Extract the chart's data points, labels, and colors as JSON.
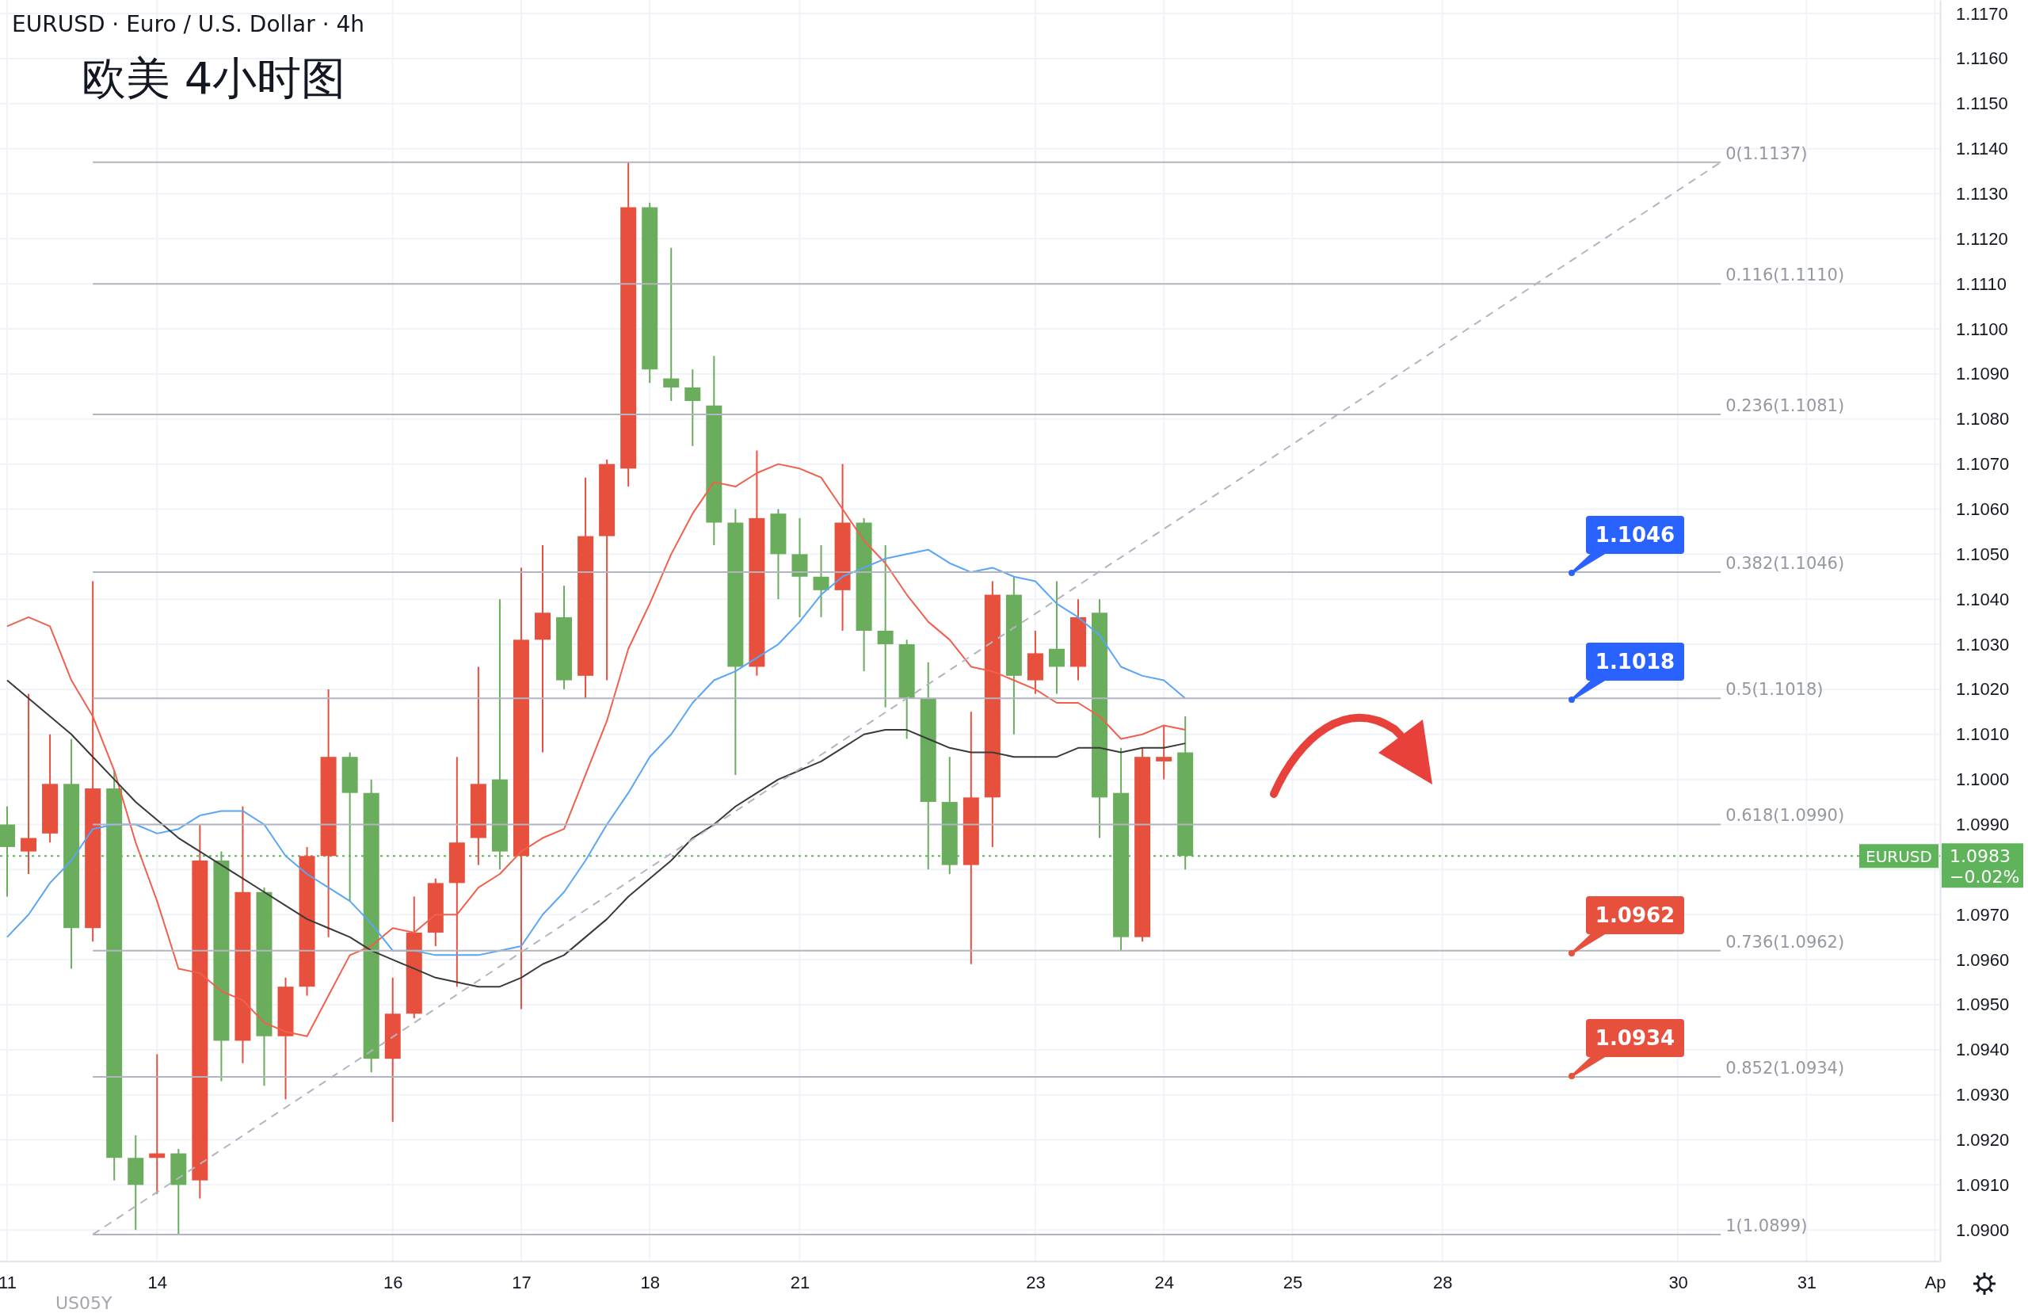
{
  "chart_data": {
    "type": "candlestick",
    "title": "欧美 4小时图",
    "subtitle": "EURUSD · Euro / U.S. Dollar · 4h",
    "categories": [
      "11",
      null,
      null,
      null,
      null,
      null,
      null,
      "14",
      null,
      null,
      null,
      null,
      null,
      null,
      null,
      null,
      null,
      null,
      "16",
      null,
      null,
      null,
      null,
      null,
      "17",
      null,
      null,
      null,
      null,
      null,
      "18",
      null,
      null,
      null,
      null,
      null,
      null,
      "21",
      null,
      null,
      null,
      null,
      null,
      null,
      null,
      null,
      null,
      null,
      "23",
      null,
      null,
      null,
      null,
      null,
      "24",
      null,
      null,
      null,
      null,
      null,
      "25",
      null,
      null,
      null,
      null,
      null,
      null,
      "28",
      null,
      null,
      null,
      null,
      null,
      null,
      null,
      null,
      null,
      null,
      "30",
      null,
      null,
      null,
      null,
      null,
      "31",
      null,
      null,
      null,
      null,
      null,
      "Ap"
    ],
    "ohlc": [
      [
        1.099,
        1.0994,
        1.0974,
        1.0985
      ],
      [
        1.0984,
        1.1019,
        1.0979,
        1.0987
      ],
      [
        1.0988,
        1.101,
        1.0986,
        1.0999
      ],
      [
        1.0999,
        1.1009,
        1.0958,
        1.0967
      ],
      [
        1.0967,
        1.1044,
        1.0964,
        1.0998
      ],
      [
        1.0998,
        1.1002,
        1.0911,
        1.0916
      ],
      [
        1.0916,
        1.0921,
        1.09,
        1.091
      ],
      [
        1.0916,
        1.0939,
        1.0908,
        1.0917
      ],
      [
        1.0917,
        1.0918,
        1.0899,
        1.091
      ],
      [
        1.0911,
        1.099,
        1.0907,
        1.0982
      ],
      [
        1.0982,
        1.0984,
        1.0933,
        1.0942
      ],
      [
        1.0942,
        1.0994,
        1.0937,
        1.0975
      ],
      [
        1.0975,
        1.0976,
        1.0932,
        1.0943
      ],
      [
        1.0943,
        1.0956,
        1.0929,
        1.0954
      ],
      [
        1.0954,
        1.0985,
        1.0952,
        1.0983
      ],
      [
        1.0983,
        1.102,
        1.0965,
        1.1005
      ],
      [
        1.1005,
        1.1006,
        1.0973,
        1.0997
      ],
      [
        1.0997,
        1.1,
        1.0935,
        1.0938
      ],
      [
        1.0938,
        1.0956,
        1.0924,
        1.0948
      ],
      [
        1.0948,
        1.0974,
        1.0947,
        1.0966
      ],
      [
        1.0966,
        1.0978,
        1.0963,
        1.0977
      ],
      [
        1.0977,
        1.1005,
        1.0954,
        1.0986
      ],
      [
        1.0987,
        1.1025,
        1.0981,
        1.0999
      ],
      [
        1.1,
        1.104,
        1.098,
        1.0984
      ],
      [
        1.0983,
        1.1047,
        1.0949,
        1.1031
      ],
      [
        1.1031,
        1.1052,
        1.1006,
        1.1037
      ],
      [
        1.1036,
        1.1043,
        1.102,
        1.1022
      ],
      [
        1.1023,
        1.1067,
        1.1018,
        1.1054
      ],
      [
        1.1054,
        1.1071,
        1.1022,
        1.107
      ],
      [
        1.1069,
        1.1137,
        1.1065,
        1.1127
      ],
      [
        1.1127,
        1.1128,
        1.1088,
        1.1091
      ],
      [
        1.1089,
        1.1118,
        1.1084,
        1.1087
      ],
      [
        1.1087,
        1.1091,
        1.1074,
        1.1084
      ],
      [
        1.1083,
        1.1094,
        1.1052,
        1.1057
      ],
      [
        1.1057,
        1.106,
        1.1001,
        1.1025
      ],
      [
        1.1025,
        1.1073,
        1.1023,
        1.1058
      ],
      [
        1.1059,
        1.106,
        1.104,
        1.105
      ],
      [
        1.105,
        1.1058,
        1.1036,
        1.1045
      ],
      [
        1.1045,
        1.1052,
        1.1036,
        1.1042
      ],
      [
        1.1042,
        1.107,
        1.1033,
        1.1057
      ],
      [
        1.1057,
        1.1058,
        1.1024,
        1.1033
      ],
      [
        1.1033,
        1.1052,
        1.1016,
        1.103
      ],
      [
        1.103,
        1.1031,
        1.1009,
        1.1018
      ],
      [
        1.1018,
        1.1026,
        1.098,
        1.0995
      ],
      [
        1.0995,
        1.1005,
        1.0979,
        1.0981
      ],
      [
        1.0981,
        1.1015,
        1.0959,
        1.0996
      ],
      [
        1.0996,
        1.1044,
        1.0985,
        1.1041
      ],
      [
        1.1041,
        1.1045,
        1.101,
        1.1023
      ],
      [
        1.1022,
        1.1033,
        1.1019,
        1.1028
      ],
      [
        1.1029,
        1.1044,
        1.1019,
        1.1025
      ],
      [
        1.1025,
        1.104,
        1.1022,
        1.1036
      ],
      [
        1.1037,
        1.104,
        1.0987,
        1.0996
      ],
      [
        1.0997,
        1.1007,
        1.0962,
        1.0965
      ],
      [
        1.0965,
        1.1007,
        1.0964,
        1.1005
      ],
      [
        1.1004,
        1.1012,
        1.1,
        1.1005
      ],
      [
        1.1006,
        1.1014,
        1.098,
        1.0983
      ],
      null,
      null,
      null,
      null,
      null,
      null,
      null,
      null,
      null,
      null,
      null,
      null,
      null,
      null,
      null,
      null,
      null,
      null,
      null,
      null,
      null,
      null,
      null,
      null,
      null,
      null,
      null,
      null,
      null,
      null,
      null,
      null,
      null,
      null,
      null
    ],
    "colors": [
      "#6aad5d",
      "#e8503e",
      "#e8503e",
      "#6aad5d",
      "#e8503e",
      "#6aad5d",
      "#6aad5d",
      "#e8503e",
      "#6aad5d",
      "#e8503e",
      "#6aad5d",
      "#e8503e",
      "#6aad5d",
      "#e8503e",
      "#e8503e",
      "#e8503e",
      "#6aad5d",
      "#6aad5d",
      "#e8503e",
      "#e8503e",
      "#e8503e",
      "#e8503e",
      "#e8503e",
      "#6aad5d",
      "#e8503e",
      "#e8503e",
      "#6aad5d",
      "#e8503e",
      "#e8503e",
      "#e8503e",
      "#6aad5d",
      "#6aad5d",
      "#6aad5d",
      "#6aad5d",
      "#6aad5d",
      "#e8503e",
      "#6aad5d",
      "#6aad5d",
      "#6aad5d",
      "#e8503e",
      "#6aad5d",
      "#6aad5d",
      "#6aad5d",
      "#6aad5d",
      "#6aad5d",
      "#e8503e",
      "#e8503e",
      "#6aad5d",
      "#e8503e",
      "#6aad5d",
      "#e8503e",
      "#6aad5d",
      "#6aad5d",
      "#e8503e",
      "#e8503e",
      "#6aad5d",
      null,
      null,
      null,
      null,
      null,
      null,
      null,
      null,
      null,
      null,
      null,
      null,
      null,
      null,
      null,
      null,
      null,
      null,
      null,
      null,
      null,
      null,
      null,
      null,
      null,
      null,
      null,
      null,
      null,
      null,
      null,
      null,
      null,
      null,
      null
    ],
    "series": [
      {
        "type": "line",
        "color": "#f0604d",
        "values": [
          1.1034,
          1.1036,
          1.1034,
          1.1022,
          1.1014,
          1.1002,
          1.0986,
          1.0973,
          1.0958,
          1.0957,
          1.0953,
          1.0951,
          1.0946,
          1.0944,
          1.0943,
          1.0952,
          1.0961,
          1.0963,
          1.0967,
          1.0966,
          1.097,
          1.097,
          1.0976,
          1.0979,
          1.0984,
          1.0987,
          1.0989,
          1.1001,
          1.1013,
          1.1029,
          1.1039,
          1.105,
          1.1059,
          1.1066,
          1.1065,
          1.1068,
          1.107,
          1.1069,
          1.1067,
          1.106,
          1.1053,
          1.1048,
          1.1041,
          1.1035,
          1.1031,
          1.1025,
          1.1024,
          1.1022,
          1.102,
          1.1017,
          1.1017,
          1.1014,
          1.1009,
          1.101,
          1.1012,
          1.1011,
          null,
          null,
          null,
          null,
          null,
          null,
          null,
          null,
          null,
          null,
          null,
          null,
          null,
          null,
          null,
          null,
          null,
          null,
          null,
          null,
          null,
          null,
          null,
          null,
          null,
          null,
          null,
          null,
          null,
          null,
          null,
          null,
          null,
          null,
          null
        ]
      },
      {
        "type": "line",
        "color": "#5aa5f5",
        "values": [
          1.0965,
          1.097,
          1.0977,
          1.0982,
          1.0989,
          1.099,
          1.099,
          1.0988,
          1.0989,
          1.0992,
          1.0993,
          1.0993,
          1.099,
          1.0983,
          1.0979,
          1.0976,
          1.0973,
          1.0968,
          1.0962,
          1.0962,
          1.0961,
          1.0961,
          1.0961,
          1.0962,
          1.0963,
          1.097,
          1.0975,
          1.0982,
          1.099,
          1.0997,
          1.1005,
          1.101,
          1.1017,
          1.1022,
          1.1024,
          1.1027,
          1.103,
          1.1035,
          1.1041,
          1.1045,
          1.1047,
          1.1049,
          1.105,
          1.1051,
          1.1048,
          1.1046,
          1.1047,
          1.1045,
          1.1044,
          1.1039,
          1.1036,
          1.1032,
          1.1025,
          1.1023,
          1.1022,
          1.1018,
          null,
          null,
          null,
          null,
          null,
          null,
          null,
          null,
          null,
          null,
          null,
          null,
          null,
          null,
          null,
          null,
          null,
          null,
          null,
          null,
          null,
          null,
          null,
          null,
          null,
          null,
          null,
          null,
          null,
          null,
          null,
          null,
          null,
          null,
          null
        ]
      },
      {
        "type": "line",
        "color": "#3a3a3a",
        "values": [
          1.1022,
          1.1018,
          1.1014,
          1.101,
          1.1005,
          1.1,
          1.0995,
          1.0991,
          1.0987,
          1.0984,
          1.0981,
          1.0978,
          1.0975,
          1.0972,
          1.0969,
          1.0967,
          1.0965,
          1.0962,
          1.096,
          1.0958,
          1.0956,
          1.0955,
          1.0954,
          1.0954,
          1.0956,
          1.0959,
          1.0961,
          1.0965,
          1.0969,
          1.0974,
          1.0978,
          1.0982,
          1.0987,
          1.099,
          1.0994,
          1.0997,
          1.1,
          1.1002,
          1.1004,
          1.1007,
          1.101,
          1.1011,
          1.1011,
          1.1009,
          1.1007,
          1.1006,
          1.1006,
          1.1005,
          1.1005,
          1.1005,
          1.1007,
          1.1007,
          1.1006,
          1.1007,
          1.1007,
          1.1008,
          null,
          null,
          null,
          null,
          null,
          null,
          null,
          null,
          null,
          null,
          null,
          null,
          null,
          null,
          null,
          null,
          null,
          null,
          null,
          null,
          null,
          null,
          null,
          null,
          null,
          null,
          null,
          null,
          null,
          null,
          null,
          null,
          null,
          null,
          null
        ]
      },
      {
        "type": "line",
        "color": "#b2b5be",
        "line_style": "dashed",
        "values": [
          null,
          null,
          null,
          null,
          1.0899,
          null,
          null,
          null,
          null,
          null,
          null,
          null,
          null,
          null,
          null,
          null,
          null,
          null,
          null,
          null,
          null,
          null,
          null,
          null,
          null,
          null,
          null,
          null,
          null,
          null,
          null,
          null,
          null,
          null,
          null,
          null,
          null,
          null,
          null,
          null,
          null,
          null,
          null,
          null,
          null,
          null,
          null,
          null,
          null,
          null,
          null,
          null,
          null,
          null,
          null,
          null,
          null,
          null,
          null,
          null,
          null,
          null,
          null,
          null,
          null,
          null,
          null,
          null,
          null,
          null,
          null,
          null,
          null,
          null,
          null,
          null,
          null,
          null,
          null,
          null,
          1.1137,
          null,
          null,
          null,
          null,
          null,
          null,
          null,
          null,
          null,
          null
        ]
      },
      {
        "type": "line",
        "name": "0(1.1137)",
        "color": "#b2b5be",
        "values": [
          null,
          null,
          null,
          null,
          1.1137,
          null,
          null,
          null,
          null,
          null,
          null,
          null,
          null,
          null,
          null,
          null,
          null,
          null,
          null,
          null,
          null,
          null,
          null,
          null,
          null,
          null,
          null,
          null,
          null,
          null,
          null,
          null,
          null,
          null,
          null,
          null,
          null,
          null,
          null,
          null,
          null,
          null,
          null,
          null,
          null,
          null,
          null,
          null,
          null,
          null,
          null,
          null,
          null,
          null,
          null,
          null,
          null,
          null,
          null,
          null,
          null,
          null,
          null,
          null,
          null,
          null,
          null,
          null,
          null,
          null,
          null,
          null,
          null,
          null,
          null,
          null,
          null,
          null,
          null,
          null,
          1.1137,
          null,
          null,
          null,
          null,
          null,
          null,
          null,
          null,
          null,
          null
        ]
      },
      {
        "type": "line",
        "name": "0.116(1.1110)",
        "color": "#b2b5be",
        "values": [
          null,
          null,
          null,
          null,
          1.111,
          null,
          null,
          null,
          null,
          null,
          null,
          null,
          null,
          null,
          null,
          null,
          null,
          null,
          null,
          null,
          null,
          null,
          null,
          null,
          null,
          null,
          null,
          null,
          null,
          null,
          null,
          null,
          null,
          null,
          null,
          null,
          null,
          null,
          null,
          null,
          null,
          null,
          null,
          null,
          null,
          null,
          null,
          null,
          null,
          null,
          null,
          null,
          null,
          null,
          null,
          null,
          null,
          null,
          null,
          null,
          null,
          null,
          null,
          null,
          null,
          null,
          null,
          null,
          null,
          null,
          null,
          null,
          null,
          null,
          null,
          null,
          null,
          null,
          null,
          null,
          1.111,
          null,
          null,
          null,
          null,
          null,
          null,
          null,
          null,
          null,
          null
        ]
      },
      {
        "type": "line",
        "name": "0.236(1.1081)",
        "color": "#b2b5be",
        "values": [
          null,
          null,
          null,
          null,
          1.1081,
          null,
          null,
          null,
          null,
          null,
          null,
          null,
          null,
          null,
          null,
          null,
          null,
          null,
          null,
          null,
          null,
          null,
          null,
          null,
          null,
          null,
          null,
          null,
          null,
          null,
          null,
          null,
          null,
          null,
          null,
          null,
          null,
          null,
          null,
          null,
          null,
          null,
          null,
          null,
          null,
          null,
          null,
          null,
          null,
          null,
          null,
          null,
          null,
          null,
          null,
          null,
          null,
          null,
          null,
          null,
          null,
          null,
          null,
          null,
          null,
          null,
          null,
          null,
          null,
          null,
          null,
          null,
          null,
          null,
          null,
          null,
          null,
          null,
          null,
          null,
          1.1081,
          null,
          null,
          null,
          null,
          null,
          null,
          null,
          null,
          null,
          null
        ]
      },
      {
        "type": "line",
        "name": "0.382(1.1046)",
        "color": "#b2b5be",
        "values": [
          null,
          null,
          null,
          null,
          1.1046,
          null,
          null,
          null,
          null,
          null,
          null,
          null,
          null,
          null,
          null,
          null,
          null,
          null,
          null,
          null,
          null,
          null,
          null,
          null,
          null,
          null,
          null,
          null,
          null,
          null,
          null,
          null,
          null,
          null,
          null,
          null,
          null,
          null,
          null,
          null,
          null,
          null,
          null,
          null,
          null,
          null,
          null,
          null,
          null,
          null,
          null,
          null,
          null,
          null,
          null,
          null,
          null,
          null,
          null,
          null,
          null,
          null,
          null,
          null,
          null,
          null,
          null,
          null,
          null,
          null,
          null,
          null,
          null,
          null,
          null,
          null,
          null,
          null,
          null,
          null,
          1.1046,
          null,
          null,
          null,
          null,
          null,
          null,
          null,
          null,
          null,
          null
        ]
      },
      {
        "type": "line",
        "name": "0.5(1.1018)",
        "color": "#b2b5be",
        "values": [
          null,
          null,
          null,
          null,
          1.1018,
          null,
          null,
          null,
          null,
          null,
          null,
          null,
          null,
          null,
          null,
          null,
          null,
          null,
          null,
          null,
          null,
          null,
          null,
          null,
          null,
          null,
          null,
          null,
          null,
          null,
          null,
          null,
          null,
          null,
          null,
          null,
          null,
          null,
          null,
          null,
          null,
          null,
          null,
          null,
          null,
          null,
          null,
          null,
          null,
          null,
          null,
          null,
          null,
          null,
          null,
          null,
          null,
          null,
          null,
          null,
          null,
          null,
          null,
          null,
          null,
          null,
          null,
          null,
          null,
          null,
          null,
          null,
          null,
          null,
          null,
          null,
          null,
          null,
          null,
          null,
          1.1018,
          null,
          null,
          null,
          null,
          null,
          null,
          null,
          null,
          null,
          null
        ]
      },
      {
        "type": "line",
        "name": "0.618(1.0990)",
        "color": "#b2b5be",
        "values": [
          null,
          null,
          null,
          null,
          1.099,
          null,
          null,
          null,
          null,
          null,
          null,
          null,
          null,
          null,
          null,
          null,
          null,
          null,
          null,
          null,
          null,
          null,
          null,
          null,
          null,
          null,
          null,
          null,
          null,
          null,
          null,
          null,
          null,
          null,
          null,
          null,
          null,
          null,
          null,
          null,
          null,
          null,
          null,
          null,
          null,
          null,
          null,
          null,
          null,
          null,
          null,
          null,
          null,
          null,
          null,
          null,
          null,
          null,
          null,
          null,
          null,
          null,
          null,
          null,
          null,
          null,
          null,
          null,
          null,
          null,
          null,
          null,
          null,
          null,
          null,
          null,
          null,
          null,
          null,
          null,
          1.099,
          null,
          null,
          null,
          null,
          null,
          null,
          null,
          null,
          null,
          null
        ]
      },
      {
        "type": "line",
        "name": "0.736(1.0962)",
        "color": "#b2b5be",
        "values": [
          null,
          null,
          null,
          null,
          1.0962,
          null,
          null,
          null,
          null,
          null,
          null,
          null,
          null,
          null,
          null,
          null,
          null,
          null,
          null,
          null,
          null,
          null,
          null,
          null,
          null,
          null,
          null,
          null,
          null,
          null,
          null,
          null,
          null,
          null,
          null,
          null,
          null,
          null,
          null,
          null,
          null,
          null,
          null,
          null,
          null,
          null,
          null,
          null,
          null,
          null,
          null,
          null,
          null,
          null,
          null,
          null,
          null,
          null,
          null,
          null,
          null,
          null,
          null,
          null,
          null,
          null,
          null,
          null,
          null,
          null,
          null,
          null,
          null,
          null,
          null,
          null,
          null,
          null,
          null,
          null,
          1.0962,
          null,
          null,
          null,
          null,
          null,
          null,
          null,
          null,
          null,
          null
        ]
      },
      {
        "type": "line",
        "name": "0.852(1.0934)",
        "color": "#b2b5be",
        "values": [
          null,
          null,
          null,
          null,
          1.0934,
          null,
          null,
          null,
          null,
          null,
          null,
          null,
          null,
          null,
          null,
          null,
          null,
          null,
          null,
          null,
          null,
          null,
          null,
          null,
          null,
          null,
          null,
          null,
          null,
          null,
          null,
          null,
          null,
          null,
          null,
          null,
          null,
          null,
          null,
          null,
          null,
          null,
          null,
          null,
          null,
          null,
          null,
          null,
          null,
          null,
          null,
          null,
          null,
          null,
          null,
          null,
          null,
          null,
          null,
          null,
          null,
          null,
          null,
          null,
          null,
          null,
          null,
          null,
          null,
          null,
          null,
          null,
          null,
          null,
          null,
          null,
          null,
          null,
          null,
          null,
          1.0934,
          null,
          null,
          null,
          null,
          null,
          null,
          null,
          null,
          null,
          null
        ]
      },
      {
        "type": "line",
        "name": "1(1.0899)",
        "color": "#b2b5be",
        "values": [
          null,
          null,
          null,
          null,
          1.0899,
          null,
          null,
          null,
          null,
          null,
          null,
          null,
          null,
          null,
          null,
          null,
          null,
          null,
          null,
          null,
          null,
          null,
          null,
          null,
          null,
          null,
          null,
          null,
          null,
          null,
          null,
          null,
          null,
          null,
          null,
          null,
          null,
          null,
          null,
          null,
          null,
          null,
          null,
          null,
          null,
          null,
          null,
          null,
          null,
          null,
          null,
          null,
          null,
          null,
          null,
          null,
          null,
          null,
          null,
          null,
          null,
          null,
          null,
          null,
          null,
          null,
          null,
          null,
          null,
          null,
          null,
          null,
          null,
          null,
          null,
          null,
          null,
          null,
          null,
          null,
          1.0899,
          null,
          null,
          null,
          null,
          null,
          null,
          null,
          null,
          null,
          null
        ]
      }
    ],
    "ref_lines": [
      {
        "axis": "y",
        "value": 1.0983,
        "label": "EURUSD",
        "color": "#5fb35a",
        "line_style": "dotted"
      }
    ],
    "annotations": [
      "1.1046",
      "1.1018",
      "1.0962",
      "1.0934",
      "1.0983",
      "−0.02%",
      "US05Y"
    ],
    "ylim": [
      1.0893,
      1.1173
    ],
    "yticks": [
      {
        "value": 1.09,
        "label": "1.0900"
      },
      {
        "value": 1.091,
        "label": "1.0910"
      },
      {
        "value": 1.092,
        "label": "1.0920"
      },
      {
        "value": 1.093,
        "label": "1.0930"
      },
      {
        "value": 1.094,
        "label": "1.0940"
      },
      {
        "value": 1.095,
        "label": "1.0950"
      },
      {
        "value": 1.096,
        "label": "1.0960"
      },
      {
        "value": 1.097,
        "label": "1.0970"
      },
      {
        "value": 1.098,
        "label": null
      },
      {
        "value": 1.099,
        "label": "1.0990"
      },
      {
        "value": 1.1,
        "label": "1.1000"
      },
      {
        "value": 1.101,
        "label": "1.1010"
      },
      {
        "value": 1.102,
        "label": "1.1020"
      },
      {
        "value": 1.103,
        "label": "1.1030"
      },
      {
        "value": 1.104,
        "label": "1.1040"
      },
      {
        "value": 1.105,
        "label": "1.1050"
      },
      {
        "value": 1.106,
        "label": "1.1060"
      },
      {
        "value": 1.107,
        "label": "1.1070"
      },
      {
        "value": 1.108,
        "label": "1.1080"
      },
      {
        "value": 1.109,
        "label": "1.1090"
      },
      {
        "value": 1.11,
        "label": "1.1100"
      },
      {
        "value": 1.111,
        "label": "1.1110"
      },
      {
        "value": 1.112,
        "label": "1.1120"
      },
      {
        "value": 1.113,
        "label": "1.1130"
      },
      {
        "value": 1.114,
        "label": "1.1140"
      },
      {
        "value": 1.115,
        "label": "1.1150"
      },
      {
        "value": 1.116,
        "label": "1.1160"
      },
      {
        "value": 1.117,
        "label": "1.1170"
      }
    ],
    "grid": true
  }
}
